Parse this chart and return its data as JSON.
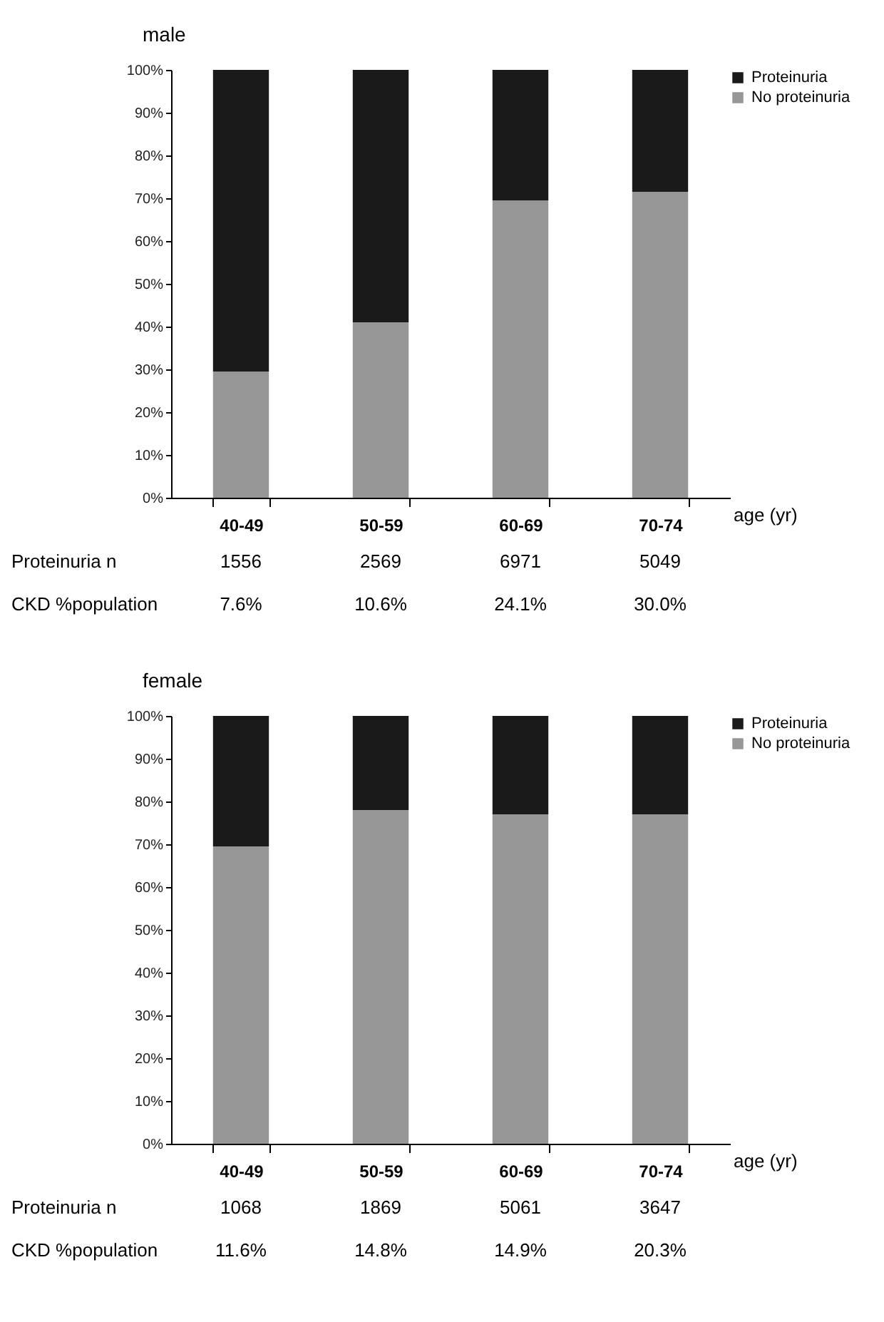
{
  "chart_data": [
    {
      "type": "bar",
      "stacked": true,
      "title": "male",
      "xlabel": "age (yr)",
      "categories": [
        "40-49",
        "50-59",
        "60-69",
        "70-74"
      ],
      "series": [
        {
          "name": "No proteinuria",
          "color": "#969696",
          "values": [
            29.5,
            41,
            69.5,
            71.5
          ]
        },
        {
          "name": "Proteinuria",
          "color": "#1a1a1a",
          "values": [
            70.5,
            59,
            30.5,
            28.5
          ]
        }
      ],
      "ylim": [
        0,
        100
      ],
      "yticks": [
        {
          "value": 0,
          "label": "0%"
        },
        {
          "value": 10,
          "label": "10%"
        },
        {
          "value": 20,
          "label": "20%"
        },
        {
          "value": 30,
          "label": "30%"
        },
        {
          "value": 40,
          "label": "40%"
        },
        {
          "value": 50,
          "label": "50%"
        },
        {
          "value": 60,
          "label": "60%"
        },
        {
          "value": 70,
          "label": "70%"
        },
        {
          "value": 80,
          "label": "80%"
        },
        {
          "value": 90,
          "label": "90%"
        },
        {
          "value": 100,
          "label": "100%"
        }
      ],
      "legend": "right",
      "grid": false,
      "annotations": [
        "Proteinuria n",
        "1556",
        "2569",
        "6971",
        "5049",
        "CKD %population",
        "7.6%",
        "10.6%",
        "24.1%",
        "30.0%"
      ]
    },
    {
      "type": "bar",
      "stacked": true,
      "title": "female",
      "xlabel": "age (yr)",
      "categories": [
        "40-49",
        "50-59",
        "60-69",
        "70-74"
      ],
      "series": [
        {
          "name": "No proteinuria",
          "color": "#969696",
          "values": [
            69.5,
            78,
            77,
            77
          ]
        },
        {
          "name": "Proteinuria",
          "color": "#1a1a1a",
          "values": [
            30.5,
            22,
            23,
            23
          ]
        }
      ],
      "ylim": [
        0,
        100
      ],
      "yticks": [
        {
          "value": 0,
          "label": "0%"
        },
        {
          "value": 10,
          "label": "10%"
        },
        {
          "value": 20,
          "label": "20%"
        },
        {
          "value": 30,
          "label": "30%"
        },
        {
          "value": 40,
          "label": "40%"
        },
        {
          "value": 50,
          "label": "50%"
        },
        {
          "value": 60,
          "label": "60%"
        },
        {
          "value": 70,
          "label": "70%"
        },
        {
          "value": 80,
          "label": "80%"
        },
        {
          "value": 90,
          "label": "90%"
        },
        {
          "value": 100,
          "label": "100%"
        }
      ],
      "legend": "right",
      "grid": false,
      "annotations": [
        "Proteinuria n",
        "1068",
        "1869",
        "5061",
        "3647",
        "CKD %population",
        "11.6%",
        "14.8%",
        "14.9%",
        "20.3%"
      ]
    }
  ]
}
